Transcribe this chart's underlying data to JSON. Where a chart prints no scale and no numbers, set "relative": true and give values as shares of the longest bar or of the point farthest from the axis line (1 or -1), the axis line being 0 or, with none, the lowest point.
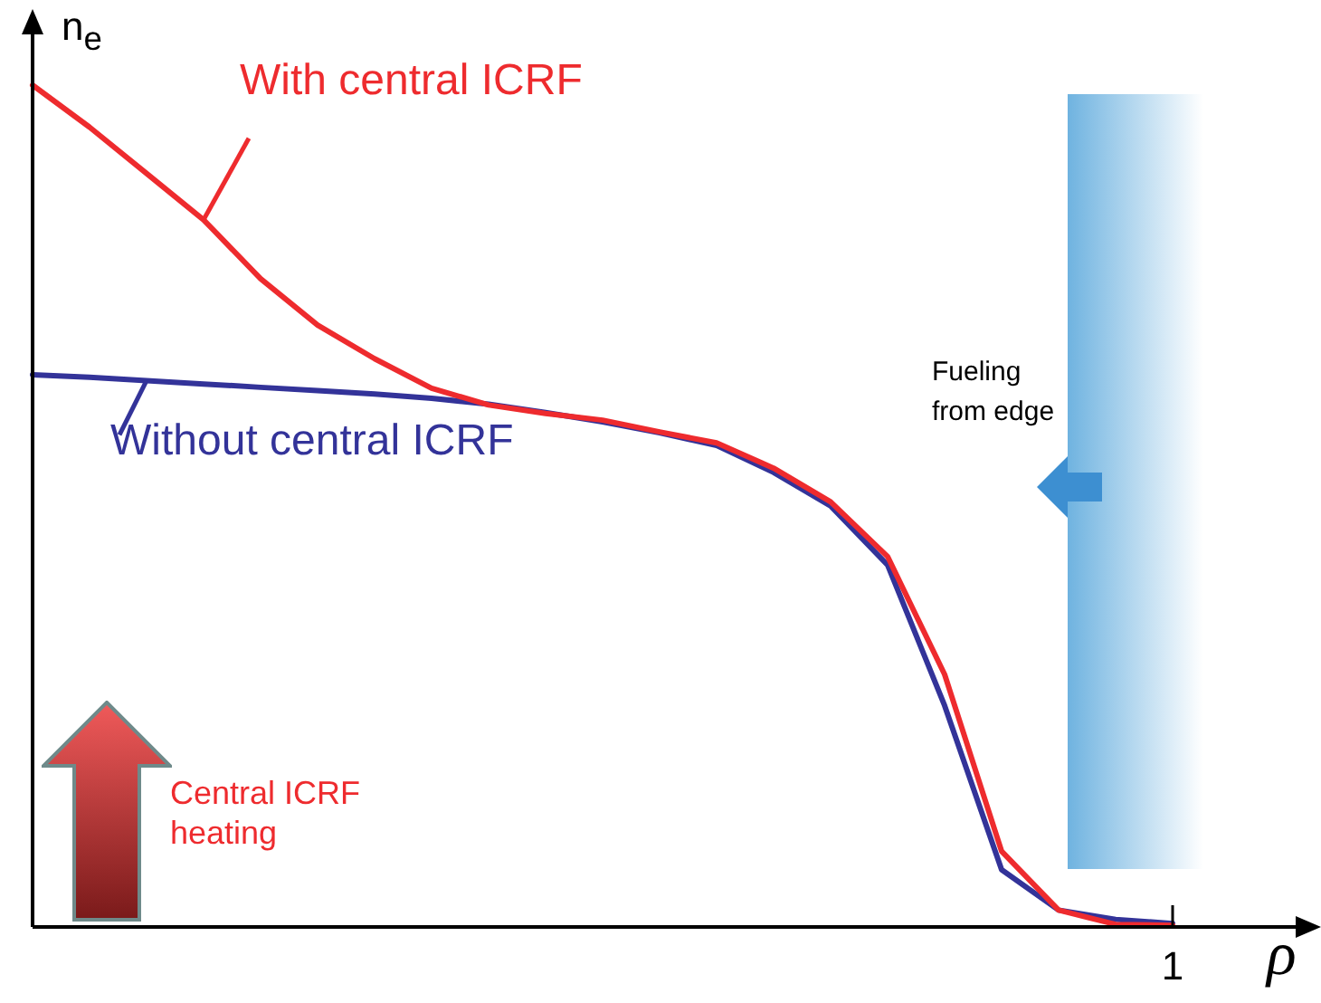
{
  "chart_data": {
    "type": "line",
    "relative": true,
    "xlabel": "ρ",
    "ylabel": "n$_{e}$",
    "marker": "none",
    "line_style": "solid",
    "categories": [
      null,
      null,
      null,
      null,
      null,
      null,
      null,
      null,
      null,
      null,
      null,
      null,
      null,
      null,
      null,
      null,
      null,
      null,
      null,
      null,
      null
    ],
    "series": [
      {
        "name": "With central ICRF",
        "color": "#ee2b2e",
        "values": [
          1.0,
          0.95,
          0.895,
          0.84,
          0.77,
          0.715,
          0.675,
          0.64,
          0.62,
          0.61,
          0.602,
          0.588,
          0.575,
          0.545,
          0.505,
          0.44,
          0.3,
          0.09,
          0.02,
          0.003,
          0.002
        ]
      },
      {
        "name": "Without central ICRF",
        "color": "#333399",
        "values": [
          0.656,
          0.653,
          0.649,
          0.645,
          0.641,
          0.637,
          0.633,
          0.628,
          0.621,
          0.611,
          0.6,
          0.587,
          0.572,
          0.54,
          0.5,
          0.43,
          0.263,
          0.068,
          0.02,
          0.009,
          0.004
        ]
      }
    ],
    "annotations": [
      "Central ICRF heating",
      "Fueling from edge",
      "1"
    ]
  }
}
